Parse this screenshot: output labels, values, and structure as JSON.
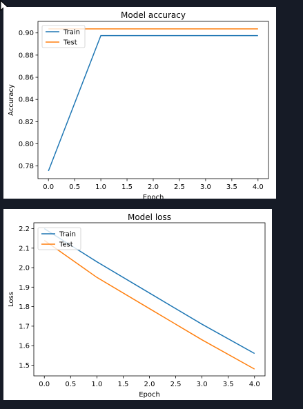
{
  "chart_data": [
    {
      "type": "line",
      "title": "Model accuracy",
      "xlabel": "Epoch",
      "ylabel": "Accuracy",
      "x": [
        0,
        1,
        2,
        3,
        4
      ],
      "xlim": [
        -0.2,
        4.2
      ],
      "ylim": [
        0.7686,
        0.9104
      ],
      "xticks": [
        0.0,
        0.5,
        1.0,
        1.5,
        2.0,
        2.5,
        3.0,
        3.5,
        4.0
      ],
      "xtick_labels": [
        "0.0",
        "0.5",
        "1.0",
        "1.5",
        "2.0",
        "2.5",
        "3.0",
        "3.5",
        "4.0"
      ],
      "yticks": [
        0.78,
        0.8,
        0.82,
        0.84,
        0.86,
        0.88,
        0.9
      ],
      "ytick_labels": [
        "0.78",
        "0.80",
        "0.82",
        "0.84",
        "0.86",
        "0.88",
        "0.90"
      ],
      "grid": false,
      "legend": "top-left",
      "series": [
        {
          "name": "Train",
          "color": "#1f77b4",
          "values": [
            0.7755,
            0.8976,
            0.8976,
            0.8976,
            0.8976
          ]
        },
        {
          "name": "Test",
          "color": "#ff7f0e",
          "values": [
            0.9036,
            0.9036,
            0.9036,
            0.9036,
            0.9036
          ]
        }
      ]
    },
    {
      "type": "line",
      "title": "Model loss",
      "xlabel": "Epoch",
      "ylabel": "Loss",
      "x": [
        0,
        1,
        2,
        3,
        4
      ],
      "xlim": [
        -0.2,
        4.2
      ],
      "ylim": [
        1.445,
        2.23
      ],
      "xticks": [
        0.0,
        0.5,
        1.0,
        1.5,
        2.0,
        2.5,
        3.0,
        3.5,
        4.0
      ],
      "xtick_labels": [
        "0.0",
        "0.5",
        "1.0",
        "1.5",
        "2.0",
        "2.5",
        "3.0",
        "3.5",
        "4.0"
      ],
      "yticks": [
        1.5,
        1.6,
        1.7,
        1.8,
        1.9,
        2.0,
        2.1,
        2.2
      ],
      "ytick_labels": [
        "1.5",
        "1.6",
        "1.7",
        "1.8",
        "1.9",
        "2.0",
        "2.1",
        "2.2"
      ],
      "grid": false,
      "legend": "top-left",
      "series": [
        {
          "name": "Train",
          "color": "#1f77b4",
          "values": [
            2.2,
            2.03,
            1.87,
            1.71,
            1.56
          ]
        },
        {
          "name": "Test",
          "color": "#ff7f0e",
          "values": [
            2.14,
            1.95,
            1.79,
            1.63,
            1.48
          ]
        }
      ]
    }
  ]
}
